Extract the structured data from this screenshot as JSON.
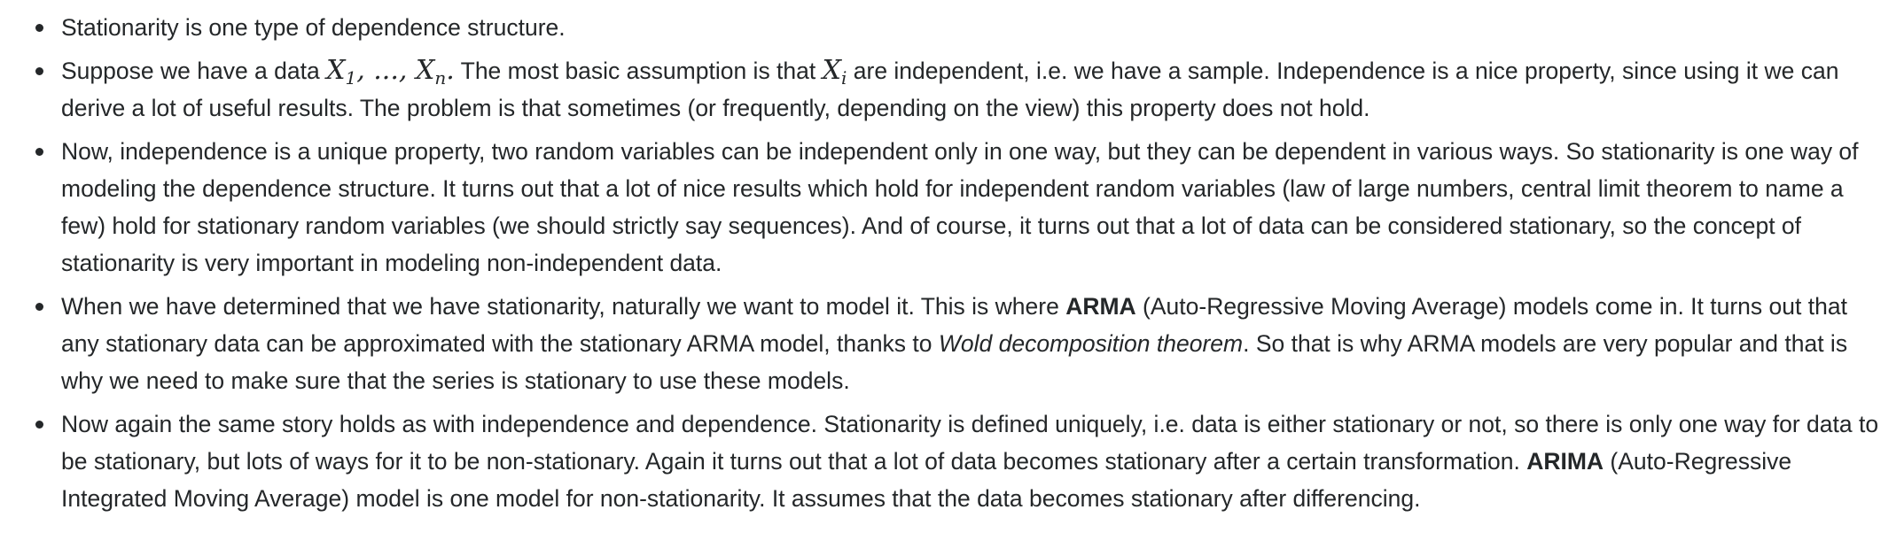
{
  "bullets": [
    {
      "text": "Stationarity is one type of dependence structure."
    },
    {
      "before": "Suppose we have a data ",
      "math_x1_var": "X",
      "math_x1_sub": "1",
      "math_sep": ", ..., ",
      "math_xn_var": "X",
      "math_xn_sub": "n",
      "math_end": ".",
      "middle": " The most basic assumption is that ",
      "math_xi_var": "X",
      "math_xi_sub": "i",
      "after": " are independent, i.e. we have a sample. Independence is a nice property, since using it we can derive a lot of useful results. The problem is that sometimes (or frequently, depending on the view) this property does not hold."
    },
    {
      "text": "Now, independence is a unique property, two random variables can be independent only in one way, but they can be dependent in various ways. So stationarity is one way of modeling the dependence structure. It turns out that a lot of nice results which hold for independent random variables (law of large numbers, central limit theorem to name a few) hold for stationary random variables (we should strictly say sequences). And of course, it turns out that a lot of data can be considered stationary, so the concept of stationarity is very important in modeling non-independent data."
    },
    {
      "before": "When we have determined that we have stationarity, naturally we want to model it. This is where ",
      "bold": "ARMA",
      "middle": " (Auto-Regressive Moving Average) models come in. It turns out that any stationary data can be approximated with the stationary ARMA model, thanks to ",
      "italic": "Wold decomposition theorem",
      "after": ". So that is why ARMA models are very popular and that is why we need to make sure that the series is stationary to use these models."
    },
    {
      "before": "Now again the same story holds as with independence and dependence. Stationarity is defined uniquely, i.e. data is either stationary or not, so there is only one way for data to be stationary, but lots of ways for it to be non-stationary. Again it turns out that a lot of data becomes stationary after a certain transformation. ",
      "bold": "ARIMA",
      "after": " (Auto-Regressive Integrated Moving Average) model is one model for non-stationarity. It assumes that the data becomes stationary after differencing."
    }
  ]
}
